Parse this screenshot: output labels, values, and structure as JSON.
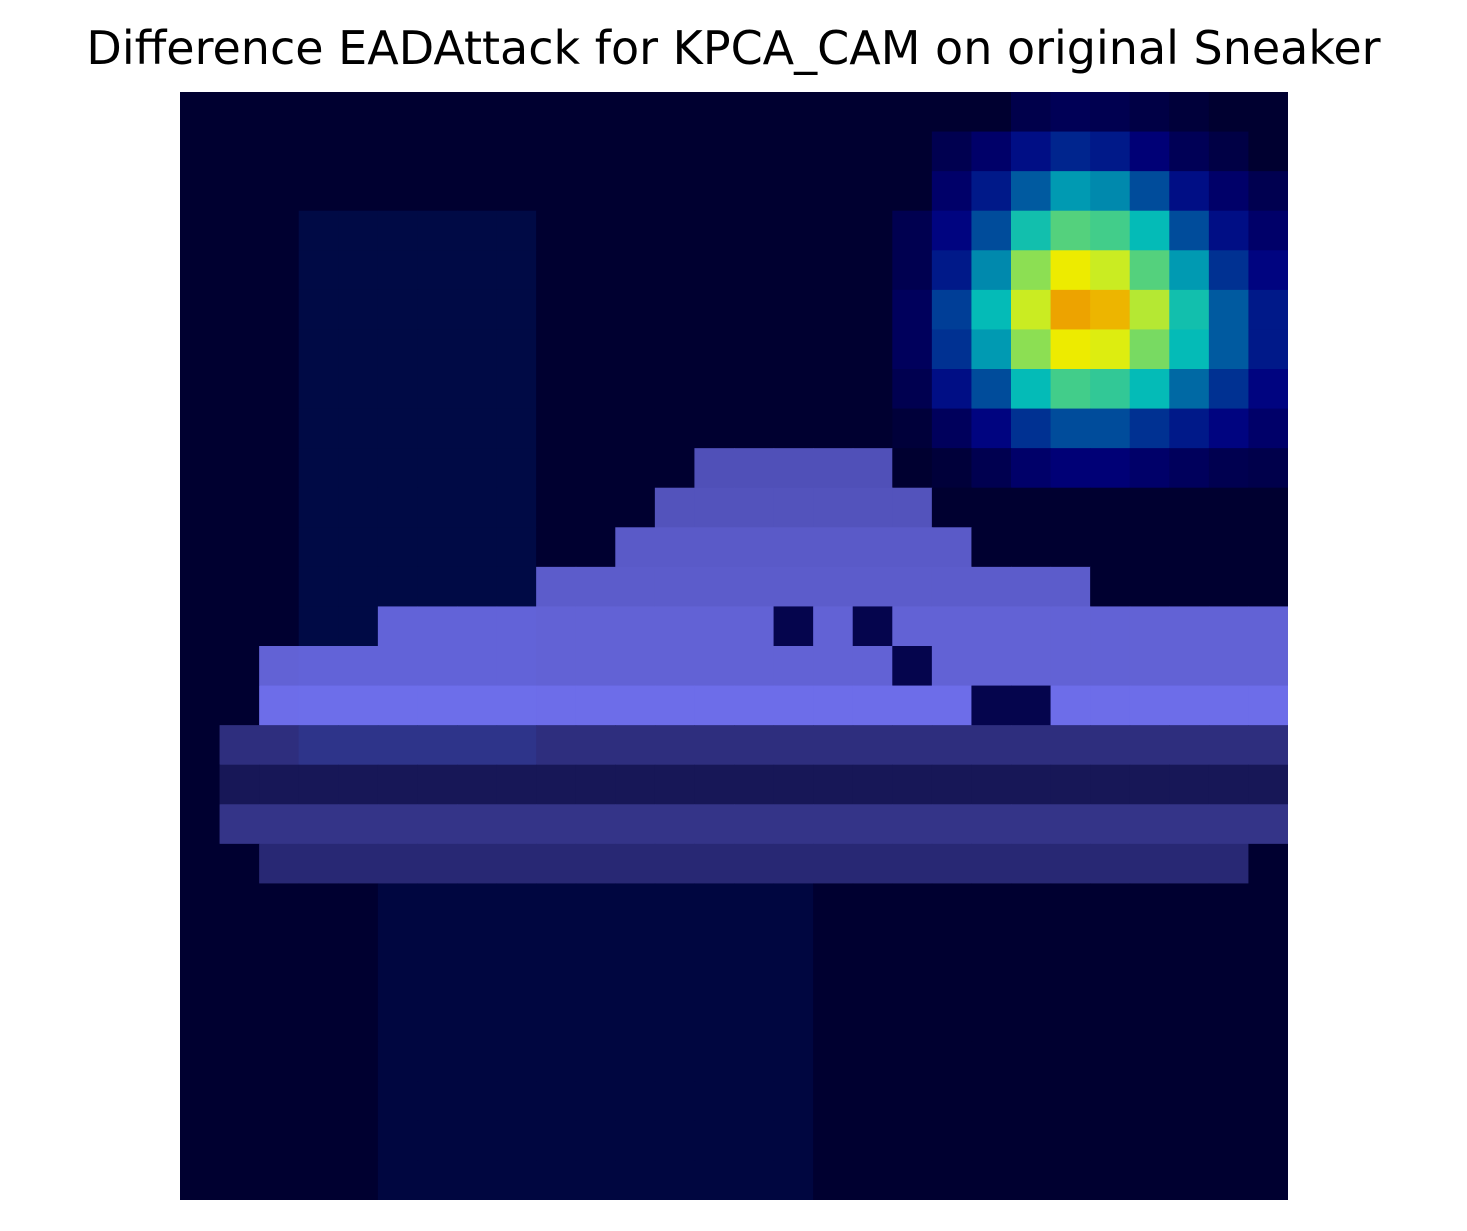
{
  "chart_data": {
    "type": "heatmap",
    "title": "Difference EADAttack for KPCA_CAM on original Sneaker",
    "xlabel": "",
    "ylabel": "",
    "axes_visible": false,
    "grid": false,
    "rows": 28,
    "cols": 28,
    "colormap": "jet",
    "hotspot_heat": [
      [
        0,
        0,
        0,
        0,
        0,
        0,
        0,
        0,
        0,
        0,
        0,
        0,
        0,
        0,
        0,
        0,
        0,
        0,
        0,
        0,
        0,
        0.05,
        0.07,
        0.06,
        0.04,
        0.02,
        0,
        0
      ],
      [
        0,
        0,
        0,
        0,
        0,
        0,
        0,
        0,
        0,
        0,
        0,
        0,
        0,
        0,
        0,
        0,
        0,
        0,
        0,
        0.06,
        0.1,
        0.16,
        0.2,
        0.18,
        0.12,
        0.07,
        0.04,
        0
      ],
      [
        0,
        0,
        0,
        0,
        0,
        0,
        0,
        0,
        0,
        0,
        0,
        0,
        0,
        0,
        0,
        0,
        0,
        0,
        0,
        0.1,
        0.18,
        0.28,
        0.36,
        0.34,
        0.26,
        0.16,
        0.1,
        0.06
      ],
      [
        0,
        0,
        0,
        0,
        0,
        0,
        0,
        0,
        0,
        0,
        0,
        0,
        0,
        0,
        0,
        0,
        0,
        0,
        0.06,
        0.14,
        0.26,
        0.42,
        0.5,
        0.48,
        0.4,
        0.26,
        0.16,
        0.1
      ],
      [
        0,
        0,
        0,
        0,
        0,
        0,
        0,
        0,
        0,
        0,
        0,
        0,
        0,
        0,
        0,
        0,
        0,
        0,
        0.06,
        0.18,
        0.34,
        0.56,
        0.66,
        0.62,
        0.5,
        0.36,
        0.22,
        0.14
      ],
      [
        0,
        0,
        0,
        0,
        0,
        0,
        0,
        0,
        0,
        0,
        0,
        0,
        0,
        0,
        0,
        0,
        0,
        0,
        0.08,
        0.24,
        0.4,
        0.62,
        0.74,
        0.72,
        0.6,
        0.42,
        0.28,
        0.18
      ],
      [
        0,
        0,
        0,
        0,
        0,
        0,
        0,
        0,
        0,
        0,
        0,
        0,
        0,
        0,
        0,
        0,
        0,
        0,
        0.08,
        0.22,
        0.36,
        0.56,
        0.66,
        0.64,
        0.54,
        0.4,
        0.28,
        0.18
      ],
      [
        0,
        0,
        0,
        0,
        0,
        0,
        0,
        0,
        0,
        0,
        0,
        0,
        0,
        0,
        0,
        0,
        0,
        0,
        0.06,
        0.16,
        0.26,
        0.4,
        0.48,
        0.46,
        0.4,
        0.3,
        0.22,
        0.14
      ],
      [
        0,
        0,
        0,
        0,
        0,
        0,
        0,
        0,
        0,
        0,
        0,
        0,
        0,
        0,
        0,
        0,
        0,
        0,
        0.02,
        0.08,
        0.14,
        0.22,
        0.26,
        0.26,
        0.22,
        0.18,
        0.14,
        0.1
      ],
      [
        0,
        0,
        0,
        0,
        0,
        0,
        0,
        0,
        0,
        0,
        0,
        0,
        0,
        0,
        0,
        0,
        0,
        0,
        0,
        0.02,
        0.06,
        0.1,
        0.12,
        0.12,
        0.1,
        0.08,
        0.06,
        0.05
      ]
    ],
    "shoe_rows": [
      {
        "row": 9,
        "from": 13,
        "to": 17,
        "strength": 0.7
      },
      {
        "row": 10,
        "from": 12,
        "to": 18,
        "strength": 0.72
      },
      {
        "row": 11,
        "from": 11,
        "to": 19,
        "strength": 0.78
      },
      {
        "row": 12,
        "from": 9,
        "to": 22,
        "strength": 0.8
      },
      {
        "row": 13,
        "from": 5,
        "to": 27,
        "strength": 0.85
      },
      {
        "row": 14,
        "from": 2,
        "to": 27,
        "strength": 0.85
      },
      {
        "row": 15,
        "from": 2,
        "to": 27,
        "strength": 0.95
      },
      {
        "row": 16,
        "from": 1,
        "to": 27,
        "strength": 0.4
      },
      {
        "row": 17,
        "from": 1,
        "to": 27,
        "strength": 0.2
      },
      {
        "row": 18,
        "from": 1,
        "to": 27,
        "strength": 0.45
      },
      {
        "row": 19,
        "from": 2,
        "to": 26,
        "strength": 0.35
      }
    ],
    "dark_cells": [
      [
        13,
        15
      ],
      [
        13,
        17
      ],
      [
        14,
        18
      ],
      [
        15,
        20
      ],
      [
        15,
        21
      ]
    ]
  }
}
